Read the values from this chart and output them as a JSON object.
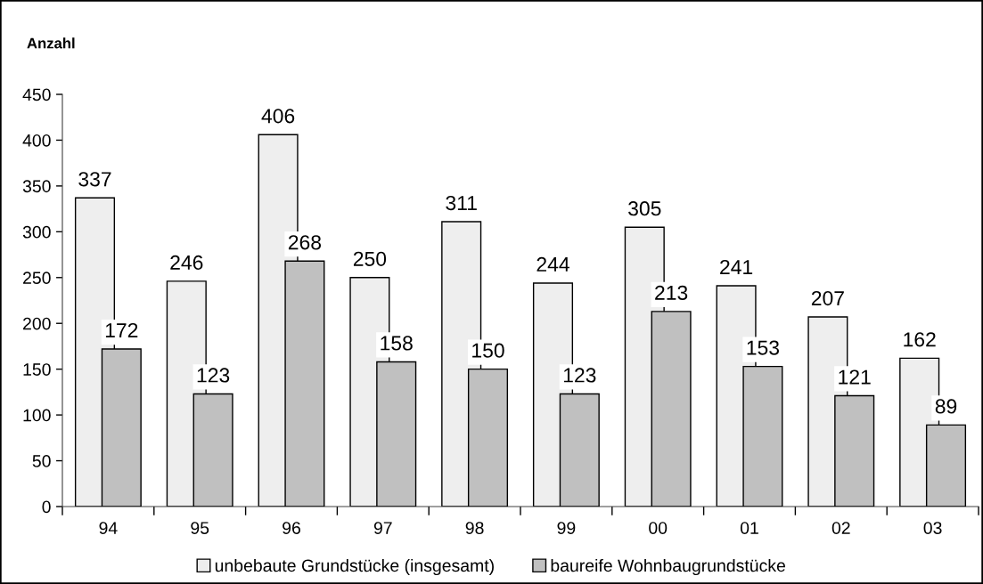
{
  "chart_data": {
    "type": "bar",
    "ylabel": "Anzahl",
    "categories": [
      "94",
      "95",
      "96",
      "97",
      "98",
      "99",
      "00",
      "01",
      "02",
      "03"
    ],
    "series": [
      {
        "name": "unbebaute Grundstücke (insgesamt)",
        "color": "#eeeeee",
        "values": [
          337,
          246,
          406,
          250,
          311,
          244,
          305,
          241,
          207,
          162
        ]
      },
      {
        "name": "baureife Wohnbaugrundstücke",
        "color": "#c0c0c0",
        "values": [
          172,
          123,
          268,
          158,
          150,
          123,
          213,
          153,
          121,
          89
        ]
      }
    ],
    "ylim": [
      0,
      450
    ],
    "yticks": [
      0,
      50,
      100,
      150,
      200,
      250,
      300,
      350,
      400,
      450
    ],
    "data_labels": true,
    "legend": "bottom"
  }
}
